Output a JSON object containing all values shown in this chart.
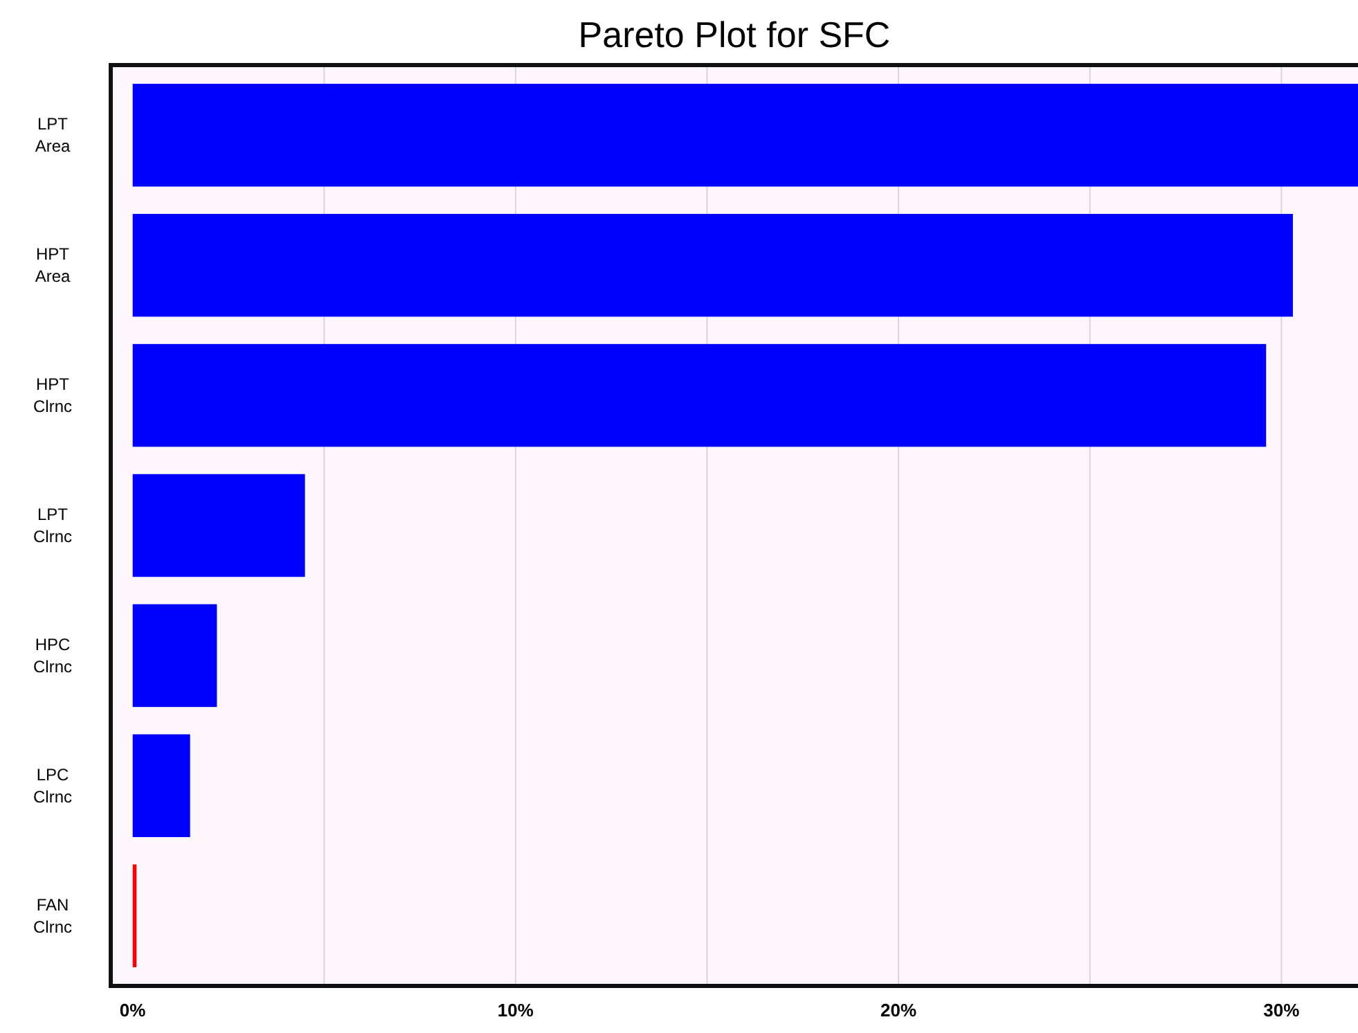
{
  "chart_data": {
    "type": "bar",
    "orientation": "horizontal",
    "title": "Pareto Plot for SFC",
    "categories": [
      "LPT Area",
      "HPT Area",
      "HPT Clrnc",
      "LPT Clrnc",
      "HPC Clrnc",
      "LPC Clrnc",
      "FAN Clrnc"
    ],
    "values": [
      32,
      30.3,
      29.6,
      4.5,
      2.2,
      1.5,
      0.1
    ],
    "colors": [
      "#0000ff",
      "#0000ff",
      "#0000ff",
      "#0000ff",
      "#0000ff",
      "#0000ff",
      "#ff0000"
    ],
    "xlim": [
      -0.5,
      32
    ],
    "xticks": [
      {
        "value": 0,
        "label": "0%"
      },
      {
        "value": 5,
        "label": null
      },
      {
        "value": 10,
        "label": "10%"
      },
      {
        "value": 15,
        "label": null
      },
      {
        "value": 20,
        "label": "20%"
      },
      {
        "value": 25,
        "label": null
      },
      {
        "value": 30,
        "label": "30%"
      }
    ],
    "grid": "x"
  }
}
